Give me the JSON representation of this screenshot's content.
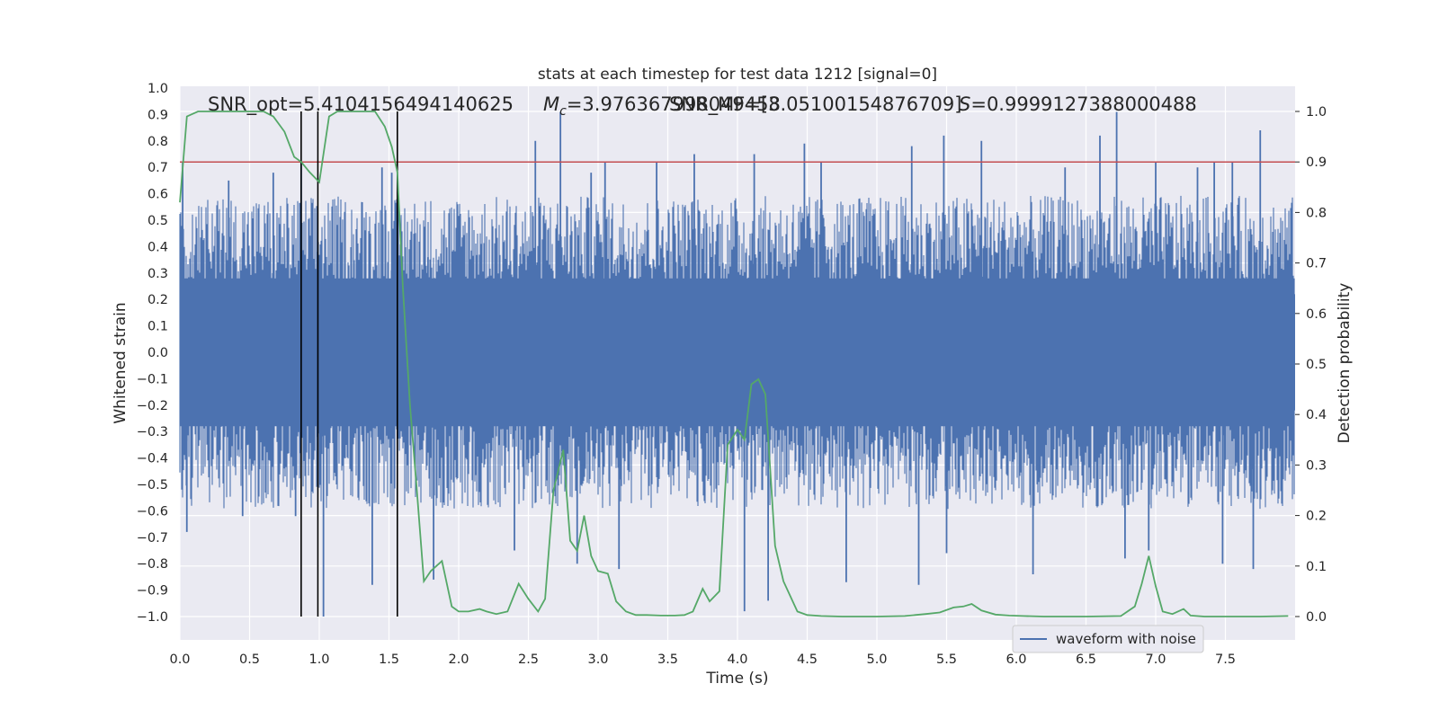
{
  "chart_data": {
    "type": "line",
    "title": "stats at each timestep for test data 1212 [signal=0]",
    "xlabel": "Time (s)",
    "ylabel": "Whitened strain",
    "y2label": "Detection probability",
    "xlim": [
      0.0,
      8.0
    ],
    "ylim": [
      -1.0,
      1.0
    ],
    "y2lim": [
      0.0,
      1.0
    ],
    "x_ticks": [
      "0.0",
      "0.5",
      "1.0",
      "1.5",
      "2.0",
      "2.5",
      "3.0",
      "3.5",
      "4.0",
      "4.5",
      "5.0",
      "5.5",
      "6.0",
      "6.5",
      "7.0",
      "7.5"
    ],
    "y_ticks": [
      "1.0",
      "0.9",
      "0.8",
      "0.7",
      "0.6",
      "0.5",
      "0.4",
      "0.3",
      "0.2",
      "0.1",
      "0.0",
      "−0.1",
      "−0.2",
      "−0.3",
      "−0.4",
      "−0.5",
      "−0.6",
      "−0.7",
      "−0.8",
      "−0.9",
      "−1.0"
    ],
    "y2_ticks": [
      "1.0",
      "0.9",
      "0.8",
      "0.7",
      "0.6",
      "0.5",
      "0.4",
      "0.3",
      "0.2",
      "0.1",
      "0.0"
    ],
    "annotations": {
      "snr_opt": "SNR_opt=5.4104156494140625",
      "mc_prefix": "M",
      "mc_sub": "c",
      "mc_value": "=3.976367998049458",
      "snr_mf": "SNR_MF=[3.05100154876709]",
      "s_prefix": "S",
      "s_value": "=0.9999127388000488"
    },
    "threshold": 0.9,
    "vertical_lines_x": [
      0.87,
      0.99,
      1.56
    ],
    "legend": {
      "label": "waveform with noise",
      "placement": "lower-right"
    },
    "grid": true,
    "colors": {
      "strain": "#4c72b0",
      "probability": "#55a868",
      "threshold": "#c44e52",
      "background": "#eaeaf2",
      "grid": "#ffffff"
    },
    "series": [
      {
        "name": "waveform with noise",
        "type": "filled-noise",
        "envelope_typical": 0.4,
        "positive_peaks": [
          [
            0.02,
            0.72
          ],
          [
            0.35,
            0.65
          ],
          [
            0.67,
            0.68
          ],
          [
            0.87,
            0.72
          ],
          [
            1.45,
            0.7
          ],
          [
            1.52,
            0.68
          ],
          [
            1.78,
            0.36
          ],
          [
            2.55,
            0.8
          ],
          [
            2.73,
            0.91
          ],
          [
            2.95,
            0.68
          ],
          [
            3.05,
            0.72
          ],
          [
            3.42,
            0.72
          ],
          [
            3.69,
            0.75
          ],
          [
            4.12,
            0.75
          ],
          [
            4.48,
            0.79
          ],
          [
            4.6,
            0.72
          ],
          [
            5.25,
            0.78
          ],
          [
            5.48,
            0.82
          ],
          [
            5.75,
            0.8
          ],
          [
            6.35,
            0.7
          ],
          [
            6.6,
            0.82
          ],
          [
            6.72,
            0.91
          ],
          [
            7.0,
            0.72
          ],
          [
            7.3,
            0.7
          ],
          [
            7.42,
            0.72
          ],
          [
            7.55,
            0.72
          ],
          [
            7.75,
            0.84
          ]
        ],
        "negative_peaks": [
          [
            0.05,
            -0.68
          ],
          [
            0.45,
            -0.62
          ],
          [
            0.83,
            -0.62
          ],
          [
            1.03,
            -1.0
          ],
          [
            1.38,
            -0.88
          ],
          [
            1.82,
            -0.86
          ],
          [
            2.4,
            -0.75
          ],
          [
            2.85,
            -0.8
          ],
          [
            3.15,
            -0.82
          ],
          [
            4.05,
            -0.98
          ],
          [
            4.22,
            -0.94
          ],
          [
            4.78,
            -0.87
          ],
          [
            5.3,
            -0.88
          ],
          [
            5.5,
            -0.76
          ],
          [
            6.12,
            -0.84
          ],
          [
            6.78,
            -0.78
          ],
          [
            6.95,
            -0.75
          ],
          [
            7.48,
            -0.8
          ],
          [
            7.7,
            -0.82
          ]
        ]
      },
      {
        "name": "",
        "axis": "right",
        "x": [
          0.0,
          0.05,
          0.13,
          0.2,
          0.3,
          0.4,
          0.5,
          0.6,
          0.67,
          0.75,
          0.82,
          0.87,
          0.93,
          1.0,
          1.07,
          1.13,
          1.2,
          1.3,
          1.4,
          1.47,
          1.52,
          1.56,
          1.6,
          1.65,
          1.7,
          1.75,
          1.8,
          1.88,
          1.95,
          2.0,
          2.07,
          2.15,
          2.2,
          2.27,
          2.35,
          2.43,
          2.5,
          2.57,
          2.62,
          2.68,
          2.75,
          2.8,
          2.85,
          2.9,
          2.95,
          3.0,
          3.07,
          3.13,
          3.2,
          3.27,
          3.35,
          3.45,
          3.55,
          3.62,
          3.68,
          3.75,
          3.8,
          3.87,
          3.93,
          4.0,
          4.05,
          4.1,
          4.15,
          4.2,
          4.27,
          4.33,
          4.43,
          4.5,
          4.6,
          4.75,
          5.0,
          5.2,
          5.35,
          5.45,
          5.55,
          5.62,
          5.68,
          5.75,
          5.85,
          5.95,
          6.05,
          6.2,
          6.5,
          6.75,
          6.85,
          6.9,
          6.95,
          7.0,
          7.05,
          7.12,
          7.2,
          7.25,
          7.35,
          7.5,
          7.75,
          7.95
        ],
        "y": [
          0.82,
          0.99,
          1.0,
          1.0,
          1.0,
          1.0,
          1.0,
          1.0,
          0.99,
          0.96,
          0.91,
          0.9,
          0.88,
          0.86,
          0.99,
          1.0,
          1.0,
          1.0,
          1.0,
          0.97,
          0.93,
          0.88,
          0.65,
          0.42,
          0.25,
          0.07,
          0.09,
          0.11,
          0.02,
          0.01,
          0.01,
          0.015,
          0.01,
          0.005,
          0.01,
          0.065,
          0.035,
          0.01,
          0.035,
          0.25,
          0.33,
          0.15,
          0.13,
          0.2,
          0.12,
          0.09,
          0.085,
          0.03,
          0.01,
          0.003,
          0.003,
          0.002,
          0.002,
          0.003,
          0.01,
          0.055,
          0.03,
          0.05,
          0.34,
          0.37,
          0.35,
          0.46,
          0.47,
          0.44,
          0.14,
          0.07,
          0.01,
          0.003,
          0.001,
          0.0,
          0.0,
          0.001,
          0.005,
          0.008,
          0.018,
          0.02,
          0.025,
          0.012,
          0.004,
          0.002,
          0.001,
          0.0,
          0.0,
          0.001,
          0.02,
          0.065,
          0.12,
          0.06,
          0.01,
          0.005,
          0.015,
          0.002,
          0.0,
          0.0,
          0.0,
          0.001
        ]
      }
    ]
  }
}
